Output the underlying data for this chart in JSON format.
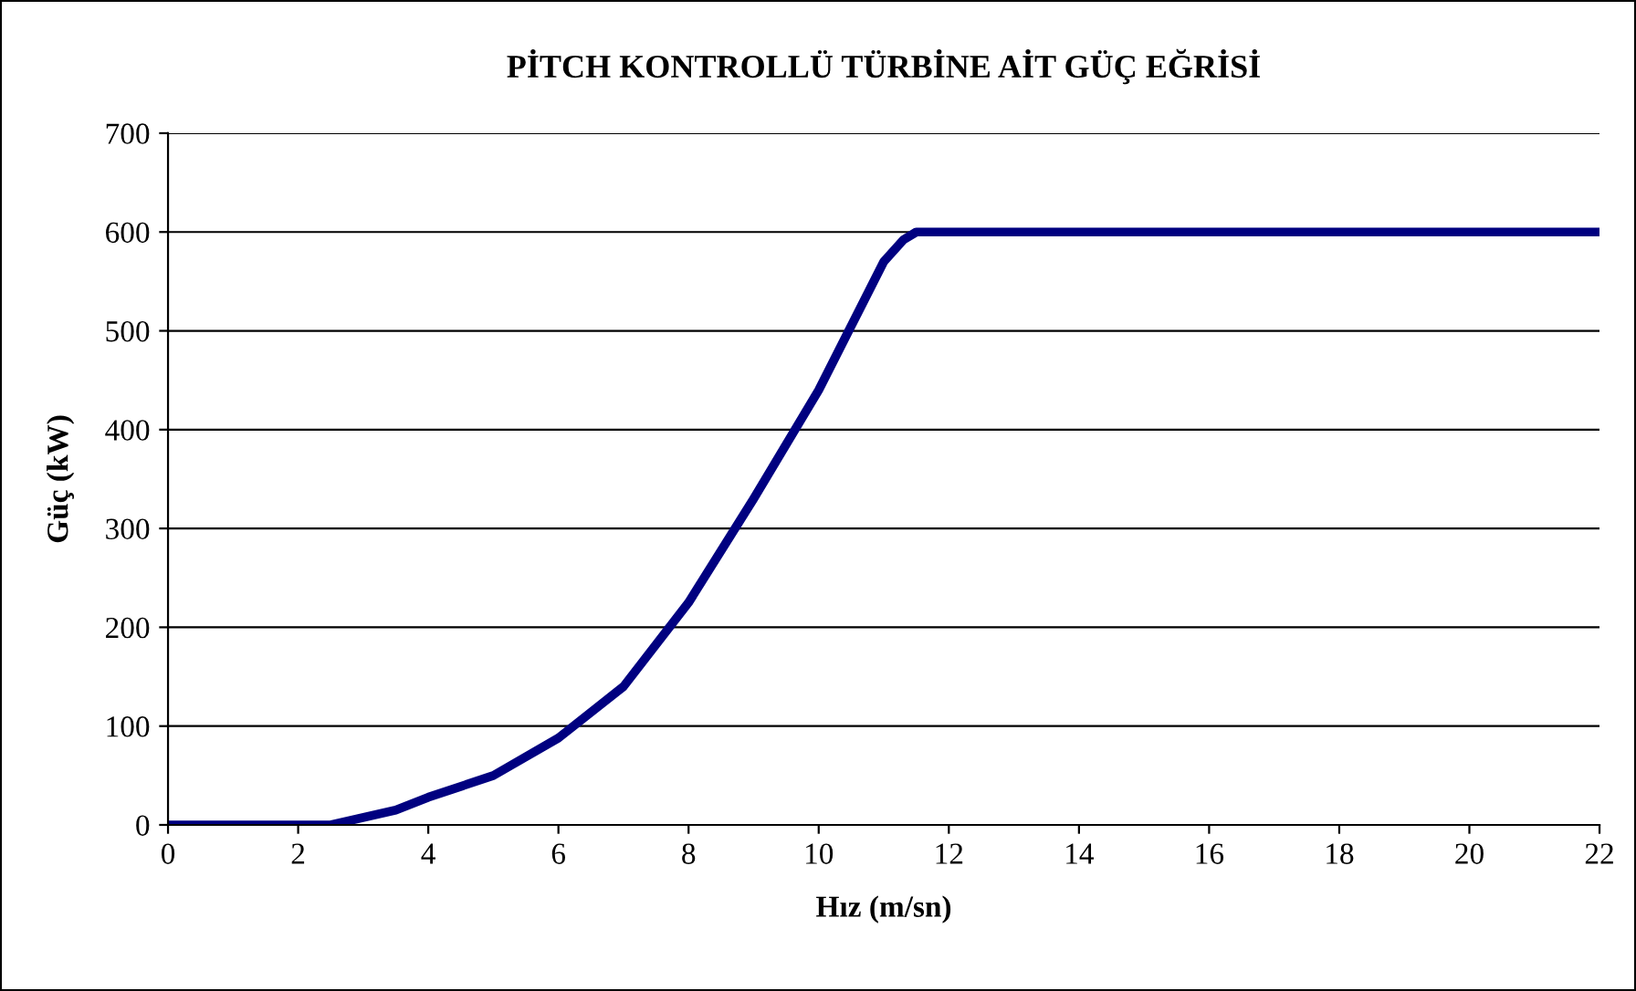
{
  "chart_data": {
    "type": "line",
    "title": "PİTCH KONTROLLÜ TÜRBİNE AİT GÜÇ EĞRİSİ",
    "xlabel": "Hız (m/sn)",
    "ylabel": "Güç (kW)",
    "x": [
      0,
      2.5,
      3.5,
      4,
      5,
      6,
      7,
      8,
      9,
      10,
      11,
      11.3,
      11.5,
      22
    ],
    "series": [
      {
        "color": "#000080",
        "values": [
          0,
          0,
          15,
          28,
          50,
          88,
          140,
          225,
          330,
          440,
          570,
          592,
          600,
          600
        ]
      }
    ],
    "xlim": [
      0,
      22
    ],
    "xticks": [
      0,
      2,
      4,
      6,
      8,
      10,
      12,
      14,
      16,
      18,
      20,
      22
    ],
    "ylim": [
      0,
      700
    ],
    "yticks": [
      0,
      100,
      200,
      300,
      400,
      500,
      600,
      700
    ],
    "grid": "y",
    "legend": false,
    "marker": "none",
    "line_style": "solid"
  }
}
